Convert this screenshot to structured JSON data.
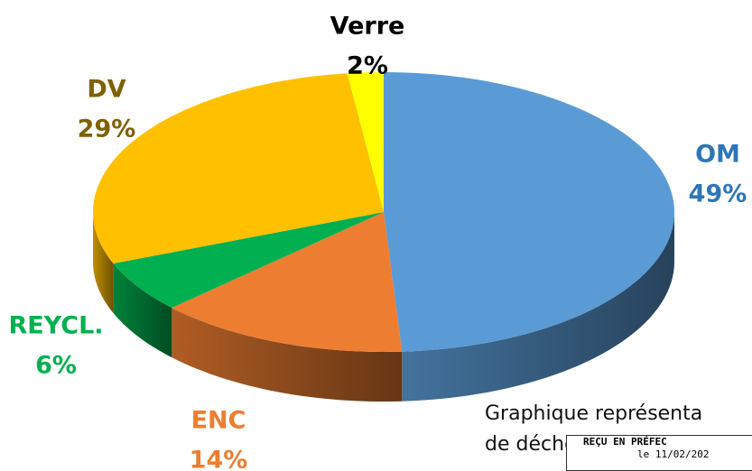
{
  "chart_data": {
    "type": "pie",
    "categories": [
      "OM",
      "ENC",
      "REYCL.",
      "DV",
      "Verre"
    ],
    "values": [
      49,
      14,
      6,
      29,
      2
    ],
    "value_labels": [
      "49%",
      "14%",
      "6%",
      "29%",
      "2%"
    ],
    "colors": [
      "#5b9bd5",
      "#ed7d31",
      "#00b050",
      "#ffc000",
      "#ffff00"
    ],
    "label_colors": [
      "#2e75b6",
      "#ed7d31",
      "#00b050",
      "#7f6000",
      "#000000"
    ]
  },
  "caption": [
    "Graphique représenta",
    "de déche"
  ],
  "stamp": [
    "REÇU EN PRÉFEC",
    "le 11/02/202"
  ]
}
